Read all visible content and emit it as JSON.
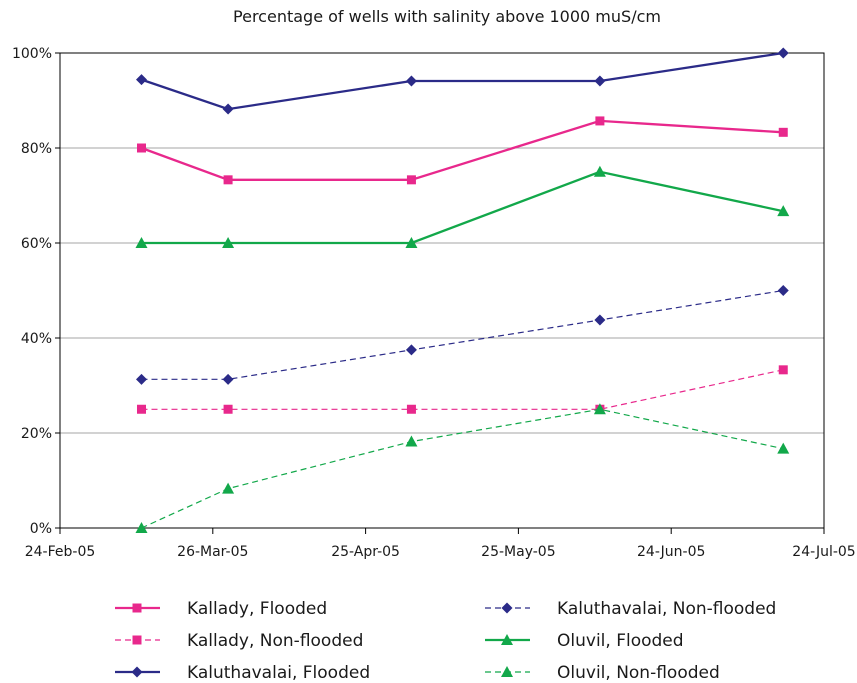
{
  "chart_data": {
    "type": "line",
    "title": "Percentage of wells with salinity above 1000 muS/cm",
    "xlabel": "",
    "ylabel": "",
    "x_ticks": [
      "24-Feb-05",
      "26-Mar-05",
      "25-Apr-05",
      "25-May-05",
      "24-Jun-05",
      "24-Jul-05"
    ],
    "y_ticks": [
      "0%",
      "20%",
      "40%",
      "60%",
      "80%",
      "100%"
    ],
    "xlim": [
      "2005-02-24",
      "2005-07-24"
    ],
    "ylim": [
      0,
      100
    ],
    "grid": "horizontal",
    "legend_position": "bottom",
    "x": [
      "2005-03-12",
      "2005-03-29",
      "2005-05-04",
      "2005-06-10",
      "2005-07-16"
    ],
    "series": [
      {
        "name": "Kallady, Flooded",
        "values": [
          80,
          73.3,
          73.3,
          85.7,
          83.3
        ],
        "color": "#e8288c",
        "dash": false,
        "marker": "square"
      },
      {
        "name": "Kallady, Non-flooded",
        "values": [
          25,
          25,
          25,
          25,
          33.3
        ],
        "color": "#e8288c",
        "dash": true,
        "marker": "square"
      },
      {
        "name": "Kaluthavalai, Flooded",
        "values": [
          94.4,
          88.2,
          94.1,
          94.1,
          100
        ],
        "color": "#2b2b88",
        "dash": false,
        "marker": "diamond"
      },
      {
        "name": "Kaluthavalai, Non-flooded",
        "values": [
          31.3,
          31.3,
          37.5,
          43.8,
          50
        ],
        "color": "#2b2b88",
        "dash": true,
        "marker": "diamond"
      },
      {
        "name": "Oluvil, Flooded",
        "values": [
          60,
          60,
          60,
          75,
          66.7
        ],
        "color": "#12a84a",
        "dash": false,
        "marker": "triangle"
      },
      {
        "name": "Oluvil, Non-flooded",
        "values": [
          0,
          8.3,
          18.2,
          25,
          16.7
        ],
        "color": "#12a84a",
        "dash": true,
        "marker": "triangle"
      }
    ]
  }
}
